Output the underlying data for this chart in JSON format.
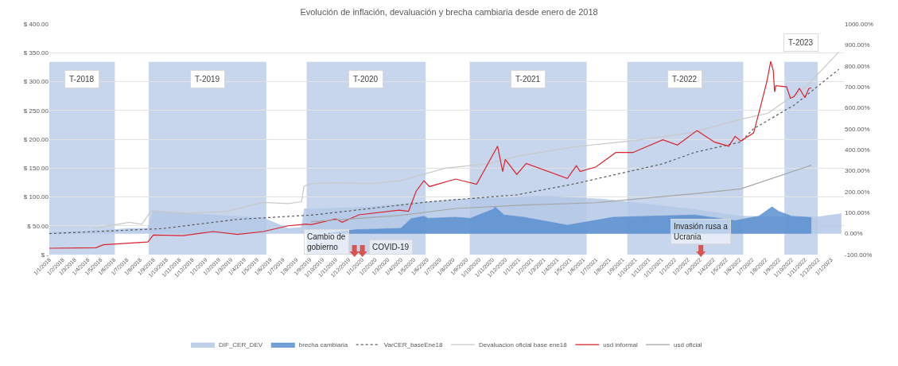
{
  "chart_data": {
    "type": "line",
    "title": "Evolución de inflación, devaluación y brecha cambiaria desde enero de 2018",
    "xlim": [
      "2018-01-01",
      "2023-01-31"
    ],
    "xticks": [
      {
        "value": "2018-01-01",
        "label": "1/1/2018"
      },
      {
        "value": "2018-02-01",
        "label": "1/2/2018"
      },
      {
        "value": "2018-03-01",
        "label": "1/3/2018"
      },
      {
        "value": "2018-04-01",
        "label": "1/4/2018"
      },
      {
        "value": "2018-05-01",
        "label": "1/5/2018"
      },
      {
        "value": "2018-06-01",
        "label": "1/6/2018"
      },
      {
        "value": "2018-07-01",
        "label": "1/7/2018"
      },
      {
        "value": "2018-08-01",
        "label": "1/8/2018"
      },
      {
        "value": "2018-09-01",
        "label": "1/9/2018"
      },
      {
        "value": "2018-10-01",
        "label": "1/10/2018"
      },
      {
        "value": "2018-11-01",
        "label": "1/11/2018"
      },
      {
        "value": "2018-12-01",
        "label": "1/12/2018"
      },
      {
        "value": "2019-01-01",
        "label": "1/1/2019"
      },
      {
        "value": "2019-02-01",
        "label": "1/2/2019"
      },
      {
        "value": "2019-03-01",
        "label": "1/3/2019"
      },
      {
        "value": "2019-04-01",
        "label": "1/4/2019"
      },
      {
        "value": "2019-05-01",
        "label": "1/5/2019"
      },
      {
        "value": "2019-06-01",
        "label": "1/6/2019"
      },
      {
        "value": "2019-07-01",
        "label": "1/7/2019"
      },
      {
        "value": "2019-08-01",
        "label": "1/8/2019"
      },
      {
        "value": "2019-09-01",
        "label": "1/9/2019"
      },
      {
        "value": "2019-10-01",
        "label": "1/10/2019"
      },
      {
        "value": "2019-11-01",
        "label": "1/11/2019"
      },
      {
        "value": "2019-12-01",
        "label": "1/12/2019"
      },
      {
        "value": "2020-01-01",
        "label": "1/1/2020"
      },
      {
        "value": "2020-02-01",
        "label": "1/2/2020"
      },
      {
        "value": "2020-03-01",
        "label": "1/3/2020"
      },
      {
        "value": "2020-04-01",
        "label": "1/4/2020"
      },
      {
        "value": "2020-05-01",
        "label": "1/5/2020"
      },
      {
        "value": "2020-06-01",
        "label": "1/6/2020"
      },
      {
        "value": "2020-07-01",
        "label": "1/7/2020"
      },
      {
        "value": "2020-08-01",
        "label": "1/8/2020"
      },
      {
        "value": "2020-09-01",
        "label": "1/9/2020"
      },
      {
        "value": "2020-10-01",
        "label": "1/10/2020"
      },
      {
        "value": "2020-11-01",
        "label": "1/11/2020"
      },
      {
        "value": "2020-12-01",
        "label": "1/12/2020"
      },
      {
        "value": "2021-01-01",
        "label": "1/1/2021"
      },
      {
        "value": "2021-02-01",
        "label": "1/2/2021"
      },
      {
        "value": "2021-03-01",
        "label": "1/3/2021"
      },
      {
        "value": "2021-04-01",
        "label": "1/4/2021"
      },
      {
        "value": "2021-05-01",
        "label": "1/5/2021"
      },
      {
        "value": "2021-06-01",
        "label": "1/6/2021"
      },
      {
        "value": "2021-07-01",
        "label": "1/7/2021"
      },
      {
        "value": "2021-08-01",
        "label": "1/8/2021"
      },
      {
        "value": "2021-09-01",
        "label": "1/9/2021"
      },
      {
        "value": "2021-10-01",
        "label": "1/10/2021"
      },
      {
        "value": "2021-11-01",
        "label": "1/11/2021"
      },
      {
        "value": "2021-12-01",
        "label": "1/12/2021"
      },
      {
        "value": "2022-01-01",
        "label": "1/1/2022"
      },
      {
        "value": "2022-02-01",
        "label": "1/2/2022"
      },
      {
        "value": "2022-03-01",
        "label": "1/3/2022"
      },
      {
        "value": "2022-04-01",
        "label": "1/4/2022"
      },
      {
        "value": "2022-05-01",
        "label": "1/5/2022"
      },
      {
        "value": "2022-06-01",
        "label": "1/6/2022"
      },
      {
        "value": "2022-07-01",
        "label": "1/7/2022"
      },
      {
        "value": "2022-08-01",
        "label": "1/8/2022"
      },
      {
        "value": "2022-09-01",
        "label": "1/9/2022"
      },
      {
        "value": "2022-10-01",
        "label": "1/10/2022"
      },
      {
        "value": "2022-11-01",
        "label": "1/11/2022"
      },
      {
        "value": "2022-12-01",
        "label": "1/12/2022"
      },
      {
        "value": "2023-01-01",
        "label": "1/1/2023"
      }
    ],
    "ylim": [
      0,
      400
    ],
    "yticks": [
      {
        "value": 0,
        "label": "$ -"
      },
      {
        "value": 50,
        "label": "$ 50.00"
      },
      {
        "value": 100,
        "label": "$ 100.00"
      },
      {
        "value": 150,
        "label": "$ 150.00"
      },
      {
        "value": 200,
        "label": "$ 200.00"
      },
      {
        "value": 250,
        "label": "$ 250.00"
      },
      {
        "value": 300,
        "label": "$ 300.00"
      },
      {
        "value": 350,
        "label": "$ 350.00"
      },
      {
        "value": 400,
        "label": "$ 400.00"
      }
    ],
    "y2lim": [
      -100,
      1000
    ],
    "y2ticks": [
      {
        "value": -100,
        "label": "-100.00%"
      },
      {
        "value": 0,
        "label": "0.00%"
      },
      {
        "value": 100,
        "label": "100.00%"
      },
      {
        "value": 200,
        "label": "200.00%"
      },
      {
        "value": 300,
        "label": "300.00%"
      },
      {
        "value": 400,
        "label": "400.00%"
      },
      {
        "value": 500,
        "label": "500.00%"
      },
      {
        "value": 600,
        "label": "600.00%"
      },
      {
        "value": 700,
        "label": "700.00%"
      },
      {
        "value": 800,
        "label": "800.00%"
      },
      {
        "value": 900,
        "label": "900.00%"
      },
      {
        "value": 1000,
        "label": "1000.00%"
      }
    ],
    "grid": "y",
    "legend": "bottom",
    "series": [
      {
        "name": "DIF_CER_DEV",
        "type": "area",
        "axis": "y2",
        "color": "#b4c8e6",
        "x": [
          "2018-01-01",
          "2018-05-07",
          "2018-07-07",
          "2018-08-19",
          "2018-09-01",
          "2018-11-19",
          "2019-02-16",
          "2019-05-16",
          "2019-07-13",
          "2019-08-13",
          "2019-08-20",
          "2019-09-04",
          "2020-01-22",
          "2020-08-14",
          "2021-03-04",
          "2021-07-19",
          "2022-02-10",
          "2022-06-04",
          "2022-11-25",
          "2023-01-25"
        ],
        "values": [
          5,
          15,
          25,
          25,
          110,
          95,
          85,
          75,
          24,
          30,
          119,
          116,
          128,
          164,
          179,
          164,
          116,
          83,
          78,
          95
        ]
      },
      {
        "name": "brecha cambiaria",
        "type": "area",
        "axis": "y2",
        "color": "#5b8fcf",
        "x": [
          "2019-10-13",
          "2019-12-19",
          "2020-04-01",
          "2020-04-25",
          "2020-05-25",
          "2020-06-04",
          "2020-08-07",
          "2020-09-10",
          "2020-11-04",
          "2020-11-07",
          "2020-11-28",
          "2021-01-13",
          "2021-04-25",
          "2021-08-10",
          "2022-02-16",
          "2022-05-22",
          "2022-07-16",
          "2022-08-16",
          "2022-09-01",
          "2022-10-01",
          "2022-11-16"
        ],
        "values": [
          2,
          19,
          25,
          71,
          83,
          73,
          78,
          73,
          117,
          128,
          89,
          78,
          40,
          78,
          89,
          62,
          83,
          128,
          106,
          83,
          77
        ]
      },
      {
        "name": "usd informal",
        "type": "line",
        "color": "#d9232d",
        "x": [
          "2018-01-01",
          "2018-04-20",
          "2018-05-07",
          "2018-08-19",
          "2018-09-01",
          "2018-11-10",
          "2019-01-19",
          "2019-03-16",
          "2019-05-16",
          "2019-07-13",
          "2019-08-25",
          "2019-09-04",
          "2019-11-01",
          "2019-11-16",
          "2019-12-25",
          "2020-03-28",
          "2020-04-19",
          "2020-05-07",
          "2020-05-25",
          "2020-06-07",
          "2020-08-07",
          "2020-09-25",
          "2020-11-13",
          "2020-11-25",
          "2020-12-01",
          "2020-12-28",
          "2021-01-19",
          "2021-04-25",
          "2021-05-16",
          "2021-05-25",
          "2021-07-01",
          "2021-08-16",
          "2021-09-25",
          "2021-12-04",
          "2022-01-07",
          "2022-02-22",
          "2022-04-04",
          "2022-05-07",
          "2022-05-22",
          "2022-06-04",
          "2022-07-04",
          "2022-07-20",
          "2022-08-04",
          "2022-08-13",
          "2022-08-19",
          "2022-08-22",
          "2022-08-25",
          "2022-09-19",
          "2022-09-28",
          "2022-10-07",
          "2022-10-19",
          "2022-11-01",
          "2022-11-10",
          "2022-11-16"
        ],
        "values": [
          11,
          12,
          17,
          22,
          34,
          33,
          40,
          35,
          40,
          50,
          53,
          52,
          62,
          56,
          69,
          77,
          75,
          110,
          128,
          118,
          131,
          122,
          188,
          144,
          165,
          139,
          158,
          132,
          154,
          144,
          152,
          177,
          177,
          199,
          190,
          215,
          195,
          188,
          205,
          197,
          211,
          256,
          300,
          335,
          319,
          282,
          293,
          291,
          271,
          274,
          288,
          272,
          288,
          289
        ]
      },
      {
        "name": "usd oficial",
        "type": "line",
        "color": "#a6a6a6",
        "x": [
          "2019-09-04",
          "2019-12-25",
          "2020-04-01",
          "2020-08-07",
          "2021-01-19",
          "2021-07-01",
          "2022-02-22",
          "2022-06-04",
          "2022-11-16"
        ],
        "values": [
          57,
          63,
          68,
          80,
          86,
          90,
          106,
          114,
          155
        ]
      },
      {
        "name": "VarCER_baseEne18",
        "type": "line",
        "axis": "y2",
        "color": "#595959",
        "line_style": "dotted",
        "x": [
          "2018-01-01",
          "2018-09-22",
          "2019-03-16",
          "2019-09-10",
          "2020-06-07",
          "2020-12-28",
          "2021-05-13",
          "2021-12-04",
          "2022-02-16",
          "2022-06-04",
          "2022-07-04",
          "2022-10-07",
          "2023-01-19"
        ],
        "values": [
          0,
          24,
          68,
          89,
          152,
          185,
          238,
          333,
          387,
          437,
          500,
          613,
          783
        ]
      },
      {
        "name": "Devaluacion oficial base ene18",
        "type": "line",
        "axis": "y2",
        "color": "#c9c9c9",
        "x": [
          "2018-04-16",
          "2018-05-07",
          "2018-07-07",
          "2018-08-05",
          "2018-08-26",
          "2018-11-19",
          "2019-02-16",
          "2019-04-16",
          "2019-05-16",
          "2019-07-13",
          "2019-08-13",
          "2019-08-19",
          "2019-09-07",
          "2019-11-01",
          "2020-01-22",
          "2020-04-01",
          "2020-07-16",
          "2020-10-22",
          "2020-12-28",
          "2021-05-13",
          "2021-09-25",
          "2022-02-10",
          "2022-06-04",
          "2022-08-07",
          "2022-11-04",
          "2023-01-19"
        ],
        "values": [
          25,
          33,
          54,
          45,
          107,
          98,
          104,
          134,
          149,
          143,
          152,
          226,
          238,
          243,
          238,
          253,
          313,
          333,
          369,
          414,
          443,
          482,
          545,
          574,
          702,
          866
        ]
      }
    ],
    "bands": [
      {
        "axis": "x",
        "from": "2018-01-01",
        "to": "2018-06-03",
        "label": "T-2018",
        "color": "#b4c7e7"
      },
      {
        "axis": "x",
        "from": "2018-08-21",
        "to": "2019-05-23",
        "label": "T-2019",
        "color": "#b4c7e7"
      },
      {
        "axis": "x",
        "from": "2019-08-25",
        "to": "2020-05-29",
        "label": "T-2020",
        "color": "#b4c7e7"
      },
      {
        "axis": "x",
        "from": "2020-09-09",
        "to": "2021-06-09",
        "label": "T-2021",
        "color": "#b4c7e7"
      },
      {
        "axis": "x",
        "from": "2021-09-12",
        "to": "2022-06-10",
        "label": "T-2022",
        "color": "#b4c7e7"
      },
      {
        "axis": "x",
        "from": "2022-09-14",
        "to": "2022-12-01",
        "label": "T-2023",
        "color": "#b4c7e7"
      }
    ],
    "annotations": [
      "Cambio de\ngobierno",
      "COVID-19",
      "Invasión rusa a\nUcrania"
    ]
  }
}
